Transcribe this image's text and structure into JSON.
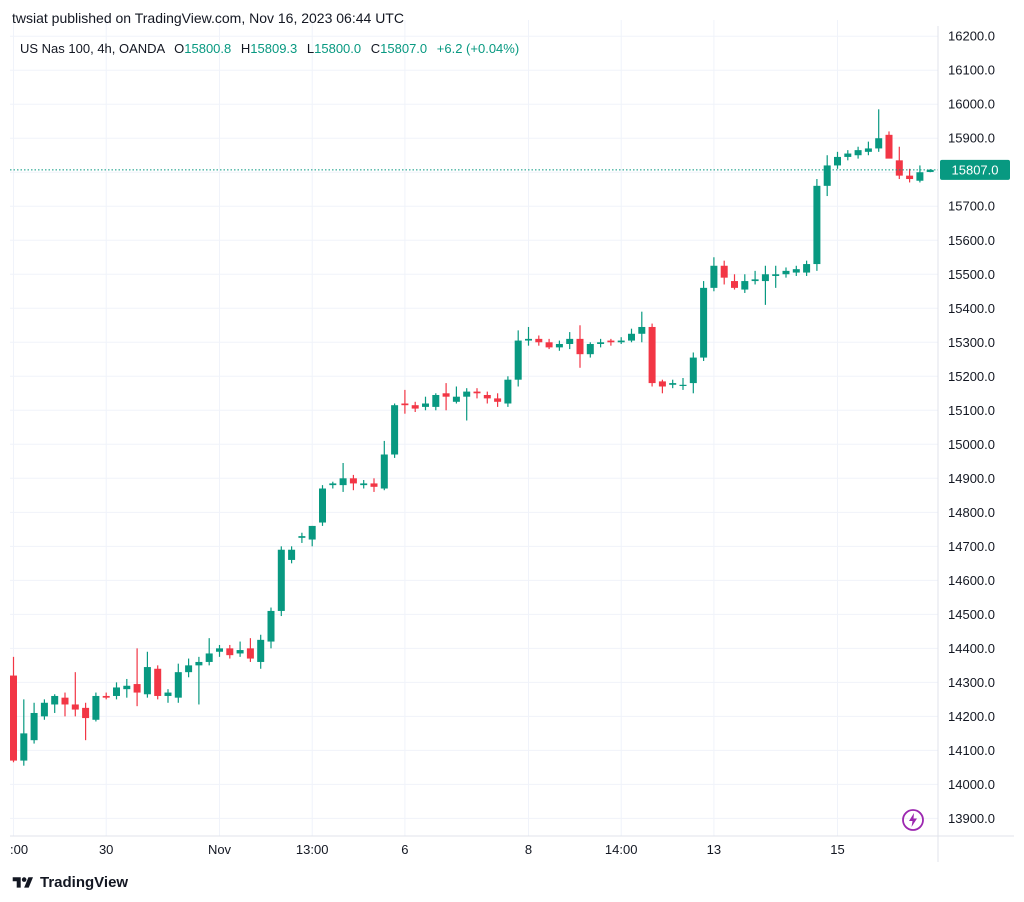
{
  "header": {
    "published_text": "twsiat published on TradingView.com, Nov 16, 2023 06:44 UTC"
  },
  "legend": {
    "symbol": "US Nas 100, 4h, OANDA",
    "open_label": "O",
    "open": "15800.8",
    "high_label": "H",
    "high": "15809.3",
    "low_label": "L",
    "low": "15800.0",
    "close_label": "C",
    "close": "15807.0",
    "change": "+6.2 (+0.04%)"
  },
  "footer": {
    "brand": "TradingView",
    "logo_icon": "tradingview-logo-icon",
    "alert_icon": "lightning-bolt-icon"
  },
  "colors": {
    "up": "#089981",
    "down": "#f23645",
    "grid": "#f0f3fa",
    "last_price": "#089981",
    "bolt": "#9c27b0"
  },
  "chart_data": {
    "type": "candlestick",
    "title": "",
    "xlabel": "",
    "ylabel": "",
    "ylim": [
      13860,
      16230
    ],
    "y_ticks": [
      "16200.0",
      "16100.0",
      "16000.0",
      "15900.0",
      "15800.0",
      "15700.0",
      "15600.0",
      "15500.0",
      "15400.0",
      "15300.0",
      "15200.0",
      "15100.0",
      "15000.0",
      "14900.0",
      "14800.0",
      "14700.0",
      "14600.0",
      "14500.0",
      "14400.0",
      "14300.0",
      "14200.0",
      "14100.0",
      "14000.0",
      "13900.0"
    ],
    "x_ticks": [
      {
        "label": ":00",
        "index": 0
      },
      {
        "label": "30",
        "index": 9
      },
      {
        "label": "Nov",
        "index": 20
      },
      {
        "label": "13:00",
        "index": 29
      },
      {
        "label": "6",
        "index": 38
      },
      {
        "label": "8",
        "index": 50
      },
      {
        "label": "14:00",
        "index": 59
      },
      {
        "label": "13",
        "index": 68
      },
      {
        "label": "15",
        "index": 80
      }
    ],
    "grid": true,
    "last_price": "15807.0",
    "last_price_value": 15807,
    "candles": [
      {
        "o": 14320,
        "h": 14375,
        "l": 14065,
        "c": 14070
      },
      {
        "o": 14070,
        "h": 14250,
        "l": 14055,
        "c": 14150
      },
      {
        "o": 14130,
        "h": 14240,
        "l": 14120,
        "c": 14210
      },
      {
        "o": 14200,
        "h": 14250,
        "l": 14190,
        "c": 14240
      },
      {
        "o": 14235,
        "h": 14265,
        "l": 14210,
        "c": 14260
      },
      {
        "o": 14255,
        "h": 14270,
        "l": 14200,
        "c": 14235
      },
      {
        "o": 14235,
        "h": 14330,
        "l": 14200,
        "c": 14220
      },
      {
        "o": 14225,
        "h": 14240,
        "l": 14130,
        "c": 14195
      },
      {
        "o": 14190,
        "h": 14270,
        "l": 14185,
        "c": 14260
      },
      {
        "o": 14260,
        "h": 14270,
        "l": 14250,
        "c": 14255
      },
      {
        "o": 14260,
        "h": 14300,
        "l": 14250,
        "c": 14285
      },
      {
        "o": 14280,
        "h": 14310,
        "l": 14255,
        "c": 14290
      },
      {
        "o": 14295,
        "h": 14400,
        "l": 14230,
        "c": 14270
      },
      {
        "o": 14265,
        "h": 14390,
        "l": 14255,
        "c": 14345
      },
      {
        "o": 14340,
        "h": 14350,
        "l": 14250,
        "c": 14260
      },
      {
        "o": 14260,
        "h": 14280,
        "l": 14240,
        "c": 14270
      },
      {
        "o": 14255,
        "h": 14355,
        "l": 14240,
        "c": 14330
      },
      {
        "o": 14330,
        "h": 14370,
        "l": 14315,
        "c": 14350
      },
      {
        "o": 14350,
        "h": 14375,
        "l": 14235,
        "c": 14360
      },
      {
        "o": 14360,
        "h": 14430,
        "l": 14350,
        "c": 14385
      },
      {
        "o": 14390,
        "h": 14410,
        "l": 14375,
        "c": 14400
      },
      {
        "o": 14400,
        "h": 14410,
        "l": 14370,
        "c": 14380
      },
      {
        "o": 14385,
        "h": 14420,
        "l": 14375,
        "c": 14395
      },
      {
        "o": 14400,
        "h": 14430,
        "l": 14360,
        "c": 14370
      },
      {
        "o": 14360,
        "h": 14440,
        "l": 14340,
        "c": 14425
      },
      {
        "o": 14420,
        "h": 14520,
        "l": 14400,
        "c": 14510
      },
      {
        "o": 14510,
        "h": 14700,
        "l": 14495,
        "c": 14690
      },
      {
        "o": 14660,
        "h": 14700,
        "l": 14650,
        "c": 14690
      },
      {
        "o": 14725,
        "h": 14740,
        "l": 14710,
        "c": 14730
      },
      {
        "o": 14720,
        "h": 14760,
        "l": 14700,
        "c": 14760
      },
      {
        "o": 14770,
        "h": 14880,
        "l": 14760,
        "c": 14870
      },
      {
        "o": 14880,
        "h": 14890,
        "l": 14870,
        "c": 14885
      },
      {
        "o": 14880,
        "h": 14945,
        "l": 14860,
        "c": 14900
      },
      {
        "o": 14900,
        "h": 14910,
        "l": 14865,
        "c": 14885
      },
      {
        "o": 14880,
        "h": 14895,
        "l": 14870,
        "c": 14885
      },
      {
        "o": 14885,
        "h": 14900,
        "l": 14860,
        "c": 14875
      },
      {
        "o": 14870,
        "h": 15010,
        "l": 14865,
        "c": 14970
      },
      {
        "o": 14970,
        "h": 15120,
        "l": 14960,
        "c": 15115
      },
      {
        "o": 15120,
        "h": 15160,
        "l": 15090,
        "c": 15115
      },
      {
        "o": 15115,
        "h": 15125,
        "l": 15095,
        "c": 15105
      },
      {
        "o": 15110,
        "h": 15140,
        "l": 15100,
        "c": 15120
      },
      {
        "o": 15110,
        "h": 15150,
        "l": 15100,
        "c": 15145
      },
      {
        "o": 15150,
        "h": 15180,
        "l": 15100,
        "c": 15140
      },
      {
        "o": 15125,
        "h": 15170,
        "l": 15120,
        "c": 15140
      },
      {
        "o": 15140,
        "h": 15165,
        "l": 15070,
        "c": 15155
      },
      {
        "o": 15155,
        "h": 15165,
        "l": 15135,
        "c": 15150
      },
      {
        "o": 15145,
        "h": 15155,
        "l": 15120,
        "c": 15135
      },
      {
        "o": 15135,
        "h": 15150,
        "l": 15110,
        "c": 15125
      },
      {
        "o": 15120,
        "h": 15200,
        "l": 15110,
        "c": 15190
      },
      {
        "o": 15190,
        "h": 15335,
        "l": 15170,
        "c": 15305
      },
      {
        "o": 15305,
        "h": 15345,
        "l": 15290,
        "c": 15310
      },
      {
        "o": 15310,
        "h": 15320,
        "l": 15290,
        "c": 15300
      },
      {
        "o": 15300,
        "h": 15310,
        "l": 15280,
        "c": 15285
      },
      {
        "o": 15285,
        "h": 15305,
        "l": 15275,
        "c": 15295
      },
      {
        "o": 15295,
        "h": 15330,
        "l": 15280,
        "c": 15310
      },
      {
        "o": 15310,
        "h": 15350,
        "l": 15225,
        "c": 15265
      },
      {
        "o": 15265,
        "h": 15300,
        "l": 15255,
        "c": 15295
      },
      {
        "o": 15295,
        "h": 15310,
        "l": 15285,
        "c": 15300
      },
      {
        "o": 15305,
        "h": 15310,
        "l": 15290,
        "c": 15300
      },
      {
        "o": 15300,
        "h": 15315,
        "l": 15295,
        "c": 15305
      },
      {
        "o": 15305,
        "h": 15340,
        "l": 15300,
        "c": 15325
      },
      {
        "o": 15325,
        "h": 15390,
        "l": 15300,
        "c": 15345
      },
      {
        "o": 15345,
        "h": 15355,
        "l": 15170,
        "c": 15180
      },
      {
        "o": 15185,
        "h": 15190,
        "l": 15150,
        "c": 15170
      },
      {
        "o": 15175,
        "h": 15190,
        "l": 15165,
        "c": 15180
      },
      {
        "o": 15175,
        "h": 15195,
        "l": 15160,
        "c": 15175
      },
      {
        "o": 15180,
        "h": 15270,
        "l": 15150,
        "c": 15255
      },
      {
        "o": 15255,
        "h": 15480,
        "l": 15245,
        "c": 15460
      },
      {
        "o": 15460,
        "h": 15550,
        "l": 15450,
        "c": 15525
      },
      {
        "o": 15525,
        "h": 15540,
        "l": 15470,
        "c": 15490
      },
      {
        "o": 15480,
        "h": 15500,
        "l": 15455,
        "c": 15460
      },
      {
        "o": 15455,
        "h": 15500,
        "l": 15445,
        "c": 15480
      },
      {
        "o": 15480,
        "h": 15510,
        "l": 15470,
        "c": 15485
      },
      {
        "o": 15480,
        "h": 15525,
        "l": 15410,
        "c": 15500
      },
      {
        "o": 15495,
        "h": 15525,
        "l": 15460,
        "c": 15500
      },
      {
        "o": 15500,
        "h": 15520,
        "l": 15490,
        "c": 15510
      },
      {
        "o": 15505,
        "h": 15525,
        "l": 15495,
        "c": 15515
      },
      {
        "o": 15505,
        "h": 15540,
        "l": 15495,
        "c": 15530
      },
      {
        "o": 15530,
        "h": 15780,
        "l": 15510,
        "c": 15760
      },
      {
        "o": 15760,
        "h": 15850,
        "l": 15730,
        "c": 15820
      },
      {
        "o": 15820,
        "h": 15860,
        "l": 15810,
        "c": 15845
      },
      {
        "o": 15845,
        "h": 15865,
        "l": 15835,
        "c": 15855
      },
      {
        "o": 15850,
        "h": 15875,
        "l": 15840,
        "c": 15865
      },
      {
        "o": 15860,
        "h": 15890,
        "l": 15850,
        "c": 15870
      },
      {
        "o": 15870,
        "h": 15985,
        "l": 15860,
        "c": 15900
      },
      {
        "o": 15910,
        "h": 15920,
        "l": 15850,
        "c": 15840
      },
      {
        "o": 15835,
        "h": 15875,
        "l": 15780,
        "c": 15790
      },
      {
        "o": 15790,
        "h": 15810,
        "l": 15770,
        "c": 15780
      },
      {
        "o": 15775,
        "h": 15820,
        "l": 15770,
        "c": 15800
      },
      {
        "o": 15800.8,
        "h": 15809.3,
        "l": 15800.0,
        "c": 15807.0
      }
    ]
  }
}
